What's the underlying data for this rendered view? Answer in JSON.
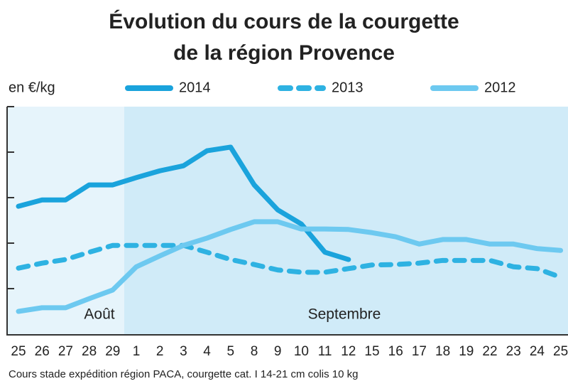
{
  "chart_data": {
    "type": "line",
    "title": [
      "Évolution du cours de la courgette",
      "de la région Provence"
    ],
    "y_label": "en €/kg",
    "footnote": "Cours stade expédition région PACA, courgette cat. I 14-21 cm colis 10 kg",
    "annotations": [
      "Août",
      "Septembre"
    ],
    "categories": [
      "25",
      "26",
      "27",
      "28",
      "29",
      "1",
      "2",
      "3",
      "4",
      "5",
      "8",
      "9",
      "10",
      "11",
      "12",
      "15",
      "16",
      "17",
      "18",
      "19",
      "22",
      "23",
      "24",
      "25"
    ],
    "ylim": [
      0,
      5
    ],
    "yticks": [
      1,
      2,
      3,
      4,
      5
    ],
    "series": [
      {
        "name": "2014",
        "color": "#1aa3dc",
        "dash": false,
        "values": [
          2.81,
          2.95,
          2.95,
          3.28,
          3.28,
          3.44,
          3.59,
          3.7,
          4.03,
          4.11,
          3.28,
          2.73,
          2.42,
          1.8,
          1.64,
          null,
          null,
          null,
          null,
          null,
          null,
          null,
          null,
          null
        ]
      },
      {
        "name": "2013",
        "color": "#2eb2e2",
        "dash": true,
        "values": [
          1.45,
          1.56,
          1.64,
          1.8,
          1.95,
          1.95,
          1.95,
          1.95,
          1.8,
          1.64,
          1.53,
          1.41,
          1.36,
          1.36,
          1.44,
          1.52,
          1.53,
          1.56,
          1.62,
          1.62,
          1.62,
          1.48,
          1.44,
          1.25
        ]
      },
      {
        "name": "2012",
        "color": "#6dc9f0",
        "dash": false,
        "values": [
          0.5,
          0.58,
          0.58,
          0.78,
          0.97,
          1.48,
          1.72,
          1.95,
          2.11,
          2.3,
          2.47,
          2.47,
          2.31,
          2.31,
          2.3,
          2.23,
          2.14,
          1.98,
          2.08,
          2.08,
          1.98,
          1.98,
          1.88,
          1.84
        ]
      }
    ]
  }
}
